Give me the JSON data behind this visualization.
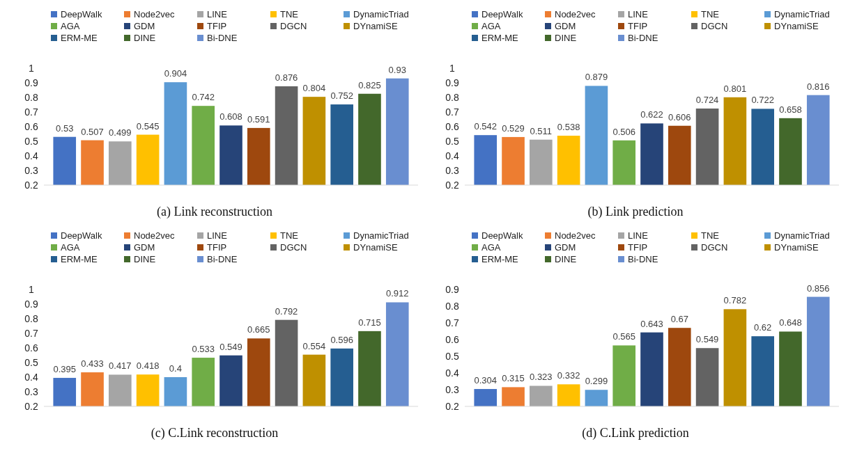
{
  "chart_data": [
    {
      "type": "bar",
      "title": "(a) Link reconstruction",
      "categories": [
        null
      ],
      "ylim": [
        0.2,
        1
      ],
      "yticks": [
        0.2,
        0.3,
        0.4,
        0.5,
        0.6,
        0.7,
        0.8,
        0.9,
        1
      ],
      "data_labels": true,
      "legend": "top",
      "series": [
        {
          "name": "DeepWalk",
          "color": "#4472c4",
          "values": [
            0.53
          ]
        },
        {
          "name": "Node2vec",
          "color": "#ed7d31",
          "values": [
            0.507
          ]
        },
        {
          "name": "LINE",
          "color": "#a5a5a5",
          "values": [
            0.499
          ]
        },
        {
          "name": "TNE",
          "color": "#ffc000",
          "values": [
            0.545
          ]
        },
        {
          "name": "DynamicTriad",
          "color": "#5b9bd5",
          "values": [
            0.904
          ]
        },
        {
          "name": "AGA",
          "color": "#70ad47",
          "values": [
            0.742
          ]
        },
        {
          "name": "GDM",
          "color": "#264478",
          "values": [
            0.608
          ]
        },
        {
          "name": "TFIP",
          "color": "#9e480e",
          "values": [
            0.591
          ]
        },
        {
          "name": "DGCN",
          "color": "#636363",
          "values": [
            0.876
          ]
        },
        {
          "name": "DYnamiSE",
          "color": "#bf9000",
          "values": [
            0.804
          ]
        },
        {
          "name": "ERM-ME",
          "color": "#255e91",
          "values": [
            0.752
          ]
        },
        {
          "name": "DINE",
          "color": "#43682b",
          "values": [
            0.825
          ]
        },
        {
          "name": "Bi-DNE",
          "color": "#698ed0",
          "values": [
            0.93
          ]
        }
      ]
    },
    {
      "type": "bar",
      "title": "(b) Link prediction",
      "categories": [
        null
      ],
      "ylim": [
        0.2,
        1
      ],
      "yticks": [
        0.2,
        0.3,
        0.4,
        0.5,
        0.6,
        0.7,
        0.8,
        0.9,
        1
      ],
      "data_labels": true,
      "legend": "top",
      "series": [
        {
          "name": "DeepWalk",
          "color": "#4472c4",
          "values": [
            0.542
          ]
        },
        {
          "name": "Node2vec",
          "color": "#ed7d31",
          "values": [
            0.529
          ]
        },
        {
          "name": "LINE",
          "color": "#a5a5a5",
          "values": [
            0.511
          ]
        },
        {
          "name": "TNE",
          "color": "#ffc000",
          "values": [
            0.538
          ]
        },
        {
          "name": "DynamicTriad",
          "color": "#5b9bd5",
          "values": [
            0.879
          ]
        },
        {
          "name": "AGA",
          "color": "#70ad47",
          "values": [
            0.506
          ]
        },
        {
          "name": "GDM",
          "color": "#264478",
          "values": [
            0.622
          ]
        },
        {
          "name": "TFIP",
          "color": "#9e480e",
          "values": [
            0.606
          ]
        },
        {
          "name": "DGCN",
          "color": "#636363",
          "values": [
            0.724
          ]
        },
        {
          "name": "DYnamiSE",
          "color": "#bf9000",
          "values": [
            0.801
          ]
        },
        {
          "name": "ERM-ME",
          "color": "#255e91",
          "values": [
            0.722
          ]
        },
        {
          "name": "DINE",
          "color": "#43682b",
          "values": [
            0.658
          ]
        },
        {
          "name": "Bi-DNE",
          "color": "#698ed0",
          "values": [
            0.816
          ]
        }
      ]
    },
    {
      "type": "bar",
      "title": "(c) C.Link reconstruction",
      "categories": [
        null
      ],
      "ylim": [
        0.2,
        1
      ],
      "yticks": [
        0.2,
        0.3,
        0.4,
        0.5,
        0.6,
        0.7,
        0.8,
        0.9,
        1
      ],
      "data_labels": true,
      "legend": "top",
      "series": [
        {
          "name": "DeepWalk",
          "color": "#4472c4",
          "values": [
            0.395
          ]
        },
        {
          "name": "Node2vec",
          "color": "#ed7d31",
          "values": [
            0.433
          ]
        },
        {
          "name": "LINE",
          "color": "#a5a5a5",
          "values": [
            0.417
          ]
        },
        {
          "name": "TNE",
          "color": "#ffc000",
          "values": [
            0.418
          ]
        },
        {
          "name": "DynamicTriad",
          "color": "#5b9bd5",
          "values": [
            0.4
          ]
        },
        {
          "name": "AGA",
          "color": "#70ad47",
          "values": [
            0.533
          ]
        },
        {
          "name": "GDM",
          "color": "#264478",
          "values": [
            0.549
          ]
        },
        {
          "name": "TFIP",
          "color": "#9e480e",
          "values": [
            0.665
          ]
        },
        {
          "name": "DGCN",
          "color": "#636363",
          "values": [
            0.792
          ]
        },
        {
          "name": "DYnamiSE",
          "color": "#bf9000",
          "values": [
            0.554
          ]
        },
        {
          "name": "ERM-ME",
          "color": "#255e91",
          "values": [
            0.596
          ]
        },
        {
          "name": "DINE",
          "color": "#43682b",
          "values": [
            0.715
          ]
        },
        {
          "name": "Bi-DNE",
          "color": "#698ed0",
          "values": [
            0.912
          ]
        }
      ]
    },
    {
      "type": "bar",
      "title": "(d) C.Link prediction",
      "categories": [
        null
      ],
      "ylim": [
        0.2,
        0.9
      ],
      "yticks": [
        0.2,
        0.3,
        0.4,
        0.5,
        0.6,
        0.7,
        0.8,
        0.9
      ],
      "data_labels": true,
      "legend": "top",
      "series": [
        {
          "name": "DeepWalk",
          "color": "#4472c4",
          "values": [
            0.304
          ]
        },
        {
          "name": "Node2vec",
          "color": "#ed7d31",
          "values": [
            0.315
          ]
        },
        {
          "name": "LINE",
          "color": "#a5a5a5",
          "values": [
            0.323
          ]
        },
        {
          "name": "TNE",
          "color": "#ffc000",
          "values": [
            0.332
          ]
        },
        {
          "name": "DynamicTriad",
          "color": "#5b9bd5",
          "values": [
            0.299
          ]
        },
        {
          "name": "AGA",
          "color": "#70ad47",
          "values": [
            0.565
          ]
        },
        {
          "name": "GDM",
          "color": "#264478",
          "values": [
            0.643
          ]
        },
        {
          "name": "TFIP",
          "color": "#9e480e",
          "values": [
            0.67
          ]
        },
        {
          "name": "DGCN",
          "color": "#636363",
          "values": [
            0.549
          ]
        },
        {
          "name": "DYnamiSE",
          "color": "#bf9000",
          "values": [
            0.782
          ]
        },
        {
          "name": "ERM-ME",
          "color": "#255e91",
          "values": [
            0.62
          ]
        },
        {
          "name": "DINE",
          "color": "#43682b",
          "values": [
            0.648
          ]
        },
        {
          "name": "Bi-DNE",
          "color": "#698ed0",
          "values": [
            0.856
          ]
        }
      ]
    }
  ]
}
